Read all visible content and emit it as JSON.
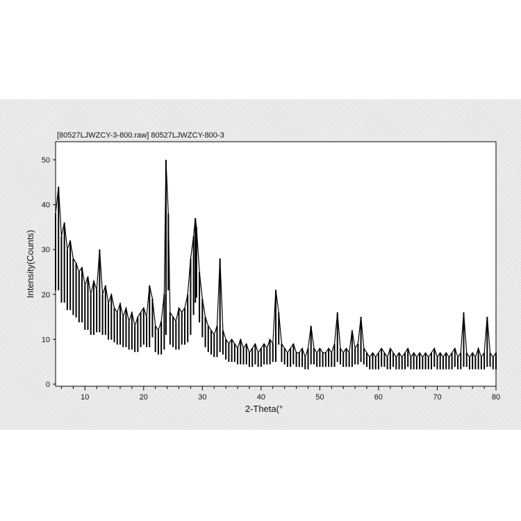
{
  "chart_data": {
    "type": "line",
    "title": "[80527LJWZCY-3-800.raw] 80527LJWZCY-800-3",
    "xlabel": "2-Theta(°",
    "ylabel": "Intensity(Counts)",
    "xlim": [
      5,
      80
    ],
    "ylim": [
      0,
      54
    ],
    "xticks": [
      10,
      20,
      30,
      40,
      50,
      60,
      70,
      80
    ],
    "yticks": [
      0,
      10,
      20,
      30,
      40,
      50
    ],
    "grid": false,
    "color": "#000000",
    "points": [
      [
        5,
        38
      ],
      [
        5.5,
        44
      ],
      [
        6,
        33
      ],
      [
        6.5,
        36
      ],
      [
        7,
        30
      ],
      [
        7.5,
        32
      ],
      [
        8,
        28
      ],
      [
        8.5,
        27
      ],
      [
        9,
        25
      ],
      [
        9.5,
        26
      ],
      [
        10,
        22
      ],
      [
        10.5,
        24
      ],
      [
        11,
        20
      ],
      [
        11.5,
        23
      ],
      [
        12,
        21
      ],
      [
        12.5,
        30
      ],
      [
        13,
        20
      ],
      [
        13.5,
        22
      ],
      [
        14,
        18
      ],
      [
        14.5,
        20
      ],
      [
        15,
        17
      ],
      [
        15.5,
        16
      ],
      [
        16,
        18
      ],
      [
        16.5,
        15
      ],
      [
        17,
        17
      ],
      [
        17.5,
        14
      ],
      [
        18,
        16
      ],
      [
        18.5,
        13
      ],
      [
        19,
        15
      ],
      [
        19.5,
        16
      ],
      [
        20,
        17
      ],
      [
        20.5,
        15
      ],
      [
        21,
        22
      ],
      [
        21.5,
        19
      ],
      [
        22,
        13
      ],
      [
        22.5,
        12
      ],
      [
        23,
        14
      ],
      [
        23.5,
        20
      ],
      [
        23.8,
        50
      ],
      [
        24.2,
        38
      ],
      [
        24.5,
        16
      ],
      [
        25,
        15
      ],
      [
        25.5,
        14
      ],
      [
        26,
        17
      ],
      [
        26.5,
        16
      ],
      [
        27,
        17
      ],
      [
        27.5,
        20
      ],
      [
        28,
        28
      ],
      [
        28.5,
        33
      ],
      [
        28.8,
        37
      ],
      [
        29,
        35
      ],
      [
        29.5,
        25
      ],
      [
        30,
        19
      ],
      [
        30.5,
        15
      ],
      [
        31,
        13
      ],
      [
        31.5,
        12
      ],
      [
        32,
        11
      ],
      [
        32.5,
        13
      ],
      [
        33,
        28
      ],
      [
        33.5,
        12
      ],
      [
        34,
        10
      ],
      [
        34.5,
        9
      ],
      [
        35,
        10
      ],
      [
        35.5,
        9
      ],
      [
        36,
        8
      ],
      [
        36.5,
        10
      ],
      [
        37,
        8
      ],
      [
        37.5,
        9
      ],
      [
        38,
        7
      ],
      [
        38.5,
        8
      ],
      [
        39,
        9
      ],
      [
        39.5,
        7
      ],
      [
        40,
        8
      ],
      [
        40.5,
        9
      ],
      [
        41,
        8
      ],
      [
        41.5,
        10
      ],
      [
        42,
        9
      ],
      [
        42.5,
        21
      ],
      [
        43,
        16
      ],
      [
        43.5,
        9
      ],
      [
        44,
        8
      ],
      [
        44.5,
        7
      ],
      [
        45,
        8
      ],
      [
        45.5,
        9
      ],
      [
        46,
        7
      ],
      [
        46.5,
        7
      ],
      [
        47,
        8
      ],
      [
        47.5,
        6
      ],
      [
        48,
        8
      ],
      [
        48.5,
        13
      ],
      [
        49,
        8
      ],
      [
        49.5,
        7
      ],
      [
        50,
        8
      ],
      [
        50.5,
        7
      ],
      [
        51,
        7
      ],
      [
        51.5,
        8
      ],
      [
        52,
        7
      ],
      [
        52.5,
        9
      ],
      [
        53,
        16
      ],
      [
        53.5,
        8
      ],
      [
        54,
        7
      ],
      [
        54.5,
        8
      ],
      [
        55,
        7
      ],
      [
        55.5,
        12
      ],
      [
        56,
        8
      ],
      [
        56.5,
        9
      ],
      [
        57,
        15
      ],
      [
        57.5,
        8
      ],
      [
        58,
        7
      ],
      [
        58.5,
        6
      ],
      [
        59,
        7
      ],
      [
        59.5,
        6
      ],
      [
        60,
        7
      ],
      [
        60.5,
        8
      ],
      [
        61,
        7
      ],
      [
        61.5,
        6
      ],
      [
        62,
        8
      ],
      [
        62.5,
        7
      ],
      [
        63,
        6
      ],
      [
        63.5,
        7
      ],
      [
        64,
        6
      ],
      [
        64.5,
        7
      ],
      [
        65,
        8
      ],
      [
        65.5,
        6
      ],
      [
        66,
        7
      ],
      [
        66.5,
        6
      ],
      [
        67,
        7
      ],
      [
        67.5,
        6
      ],
      [
        68,
        7
      ],
      [
        68.5,
        6
      ],
      [
        69,
        7
      ],
      [
        69.5,
        8
      ],
      [
        70,
        6
      ],
      [
        70.5,
        7
      ],
      [
        71,
        6
      ],
      [
        71.5,
        7
      ],
      [
        72,
        6
      ],
      [
        72.5,
        7
      ],
      [
        73,
        8
      ],
      [
        73.5,
        6
      ],
      [
        74,
        7
      ],
      [
        74.5,
        16
      ],
      [
        75,
        7
      ],
      [
        75.5,
        6
      ],
      [
        76,
        7
      ],
      [
        76.5,
        6
      ],
      [
        77,
        8
      ],
      [
        77.5,
        6
      ],
      [
        78,
        7
      ],
      [
        78.5,
        15
      ],
      [
        79,
        7
      ],
      [
        79.5,
        6
      ],
      [
        80,
        7
      ]
    ]
  }
}
